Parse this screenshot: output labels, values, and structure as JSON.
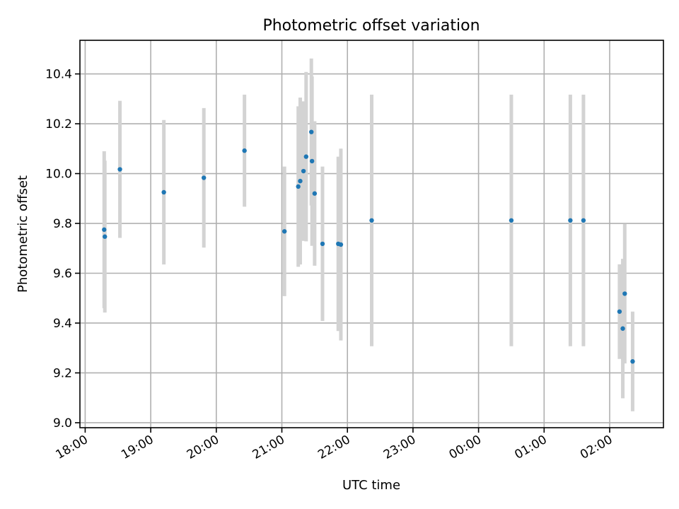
{
  "chart_data": {
    "type": "scatter",
    "title": "Photometric offset variation",
    "xlabel": "UTC time",
    "ylabel": "Photometric offset",
    "xlim": [
      -0.08,
      8.82
    ],
    "ylim": [
      8.98,
      10.535
    ],
    "x_ticks": [
      {
        "value": 0,
        "label": "18:00"
      },
      {
        "value": 1,
        "label": "19:00"
      },
      {
        "value": 2,
        "label": "20:00"
      },
      {
        "value": 3,
        "label": "21:00"
      },
      {
        "value": 4,
        "label": "22:00"
      },
      {
        "value": 5,
        "label": "23:00"
      },
      {
        "value": 6,
        "label": "00:00"
      },
      {
        "value": 7,
        "label": "01:00"
      },
      {
        "value": 8,
        "label": "02:00"
      }
    ],
    "y_ticks": [
      {
        "value": 9.0,
        "label": "9.0"
      },
      {
        "value": 9.2,
        "label": "9.2"
      },
      {
        "value": 9.4,
        "label": "9.4"
      },
      {
        "value": 9.6,
        "label": "9.6"
      },
      {
        "value": 9.8,
        "label": "9.8"
      },
      {
        "value": 10.0,
        "label": "10.0"
      },
      {
        "value": 10.2,
        "label": "10.2"
      },
      {
        "value": 10.4,
        "label": "10.4"
      }
    ],
    "grid": true,
    "point_color": "#1f77b4",
    "errorbar_color": "#d3d3d3",
    "series": [
      {
        "points": [
          {
            "x": 0.29,
            "y": 9.775,
            "yerr": 0.315
          },
          {
            "x": 0.3,
            "y": 9.747,
            "yerr": 0.305
          },
          {
            "x": 0.53,
            "y": 10.017,
            "yerr": 0.275
          },
          {
            "x": 1.2,
            "y": 9.925,
            "yerr": 0.29
          },
          {
            "x": 1.81,
            "y": 9.983,
            "yerr": 0.28
          },
          {
            "x": 2.43,
            "y": 10.092,
            "yerr": 0.225
          },
          {
            "x": 3.04,
            "y": 9.768,
            "yerr": 0.26
          },
          {
            "x": 3.25,
            "y": 9.948,
            "yerr": 0.322
          },
          {
            "x": 3.28,
            "y": 9.97,
            "yerr": 0.335
          },
          {
            "x": 3.33,
            "y": 10.01,
            "yerr": 0.28
          },
          {
            "x": 3.37,
            "y": 10.068,
            "yerr": 0.34
          },
          {
            "x": 3.45,
            "y": 10.167,
            "yerr": 0.295
          },
          {
            "x": 3.46,
            "y": 10.05,
            "yerr": 0.34
          },
          {
            "x": 3.5,
            "y": 9.92,
            "yerr": 0.29
          },
          {
            "x": 3.62,
            "y": 9.718,
            "yerr": 0.31
          },
          {
            "x": 3.86,
            "y": 9.718,
            "yerr": 0.35
          },
          {
            "x": 3.9,
            "y": 9.715,
            "yerr": 0.385
          },
          {
            "x": 4.37,
            "y": 9.812,
            "yerr": 0.505
          },
          {
            "x": 6.5,
            "y": 9.812,
            "yerr": 0.505
          },
          {
            "x": 7.4,
            "y": 9.812,
            "yerr": 0.505
          },
          {
            "x": 7.6,
            "y": 9.812,
            "yerr": 0.505
          },
          {
            "x": 8.15,
            "y": 9.446,
            "yerr": 0.19
          },
          {
            "x": 8.2,
            "y": 9.378,
            "yerr": 0.28
          },
          {
            "x": 8.23,
            "y": 9.518,
            "yerr": 0.28
          },
          {
            "x": 8.35,
            "y": 9.246,
            "yerr": 0.2
          }
        ]
      }
    ]
  }
}
